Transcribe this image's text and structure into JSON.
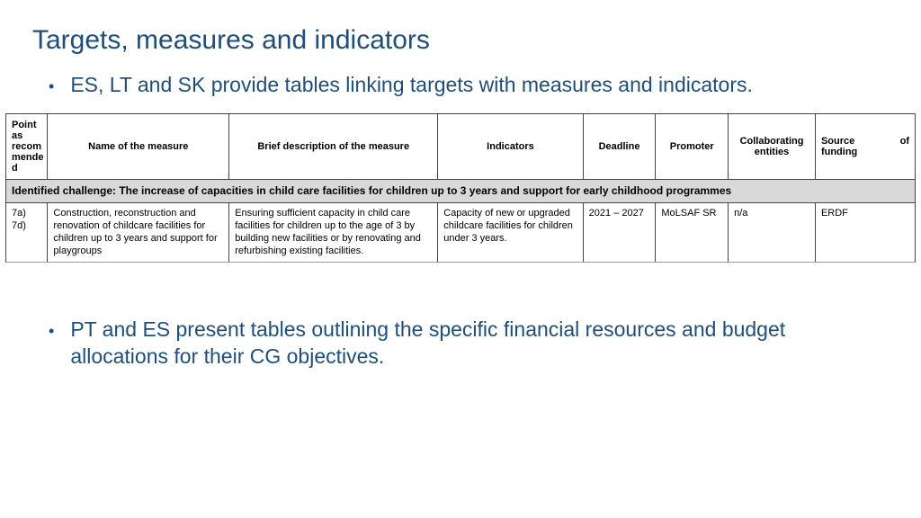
{
  "title": "Targets, measures and indicators",
  "bullets": {
    "top": "ES, LT and SK provide tables linking targets with measures and indicators.",
    "bottom": "PT and ES present tables outlining the specific financial resources and budget allocations for their CG objectives."
  },
  "table": {
    "columns": {
      "point": "Point as recom mende d",
      "name": "Name of the measure",
      "brief": "Brief description of the measure",
      "indicators": "Indicators",
      "deadline": "Deadline",
      "promoter": "Promoter",
      "collab": "Collaborating entities",
      "funding_a": "Source",
      "funding_b": "of",
      "funding_c": "funding"
    },
    "challenge": "Identified challenge: The increase of capacities in child care facilities for children up to 3 years and support for early childhood programmes",
    "row": {
      "point_a": "7a)",
      "point_b": "7d)",
      "name": "Construction, reconstruction and renovation of childcare facilities for children up to 3 years and support for playgroups",
      "brief": "Ensuring sufficient capacity in child care facilities for children up to the age of 3 by building new facilities or by renovating and refurbishing existing facilities.",
      "indicators": "Capacity of new or upgraded childcare facilities for children under 3 years.",
      "deadline": "2021 – 2027",
      "promoter": "MoLSAF SR",
      "collab": "n/a",
      "funding": "ERDF"
    },
    "styling": {
      "header_bg": "#ffffff",
      "challenge_bg": "#d9d9d9",
      "border_color": "#444444",
      "font_size_header": 11,
      "font_size_body": 11,
      "font_size_challenge": 12
    }
  },
  "colors": {
    "title": "#1f4e79",
    "bullet_text": "#1f4e79",
    "background": "#ffffff"
  }
}
